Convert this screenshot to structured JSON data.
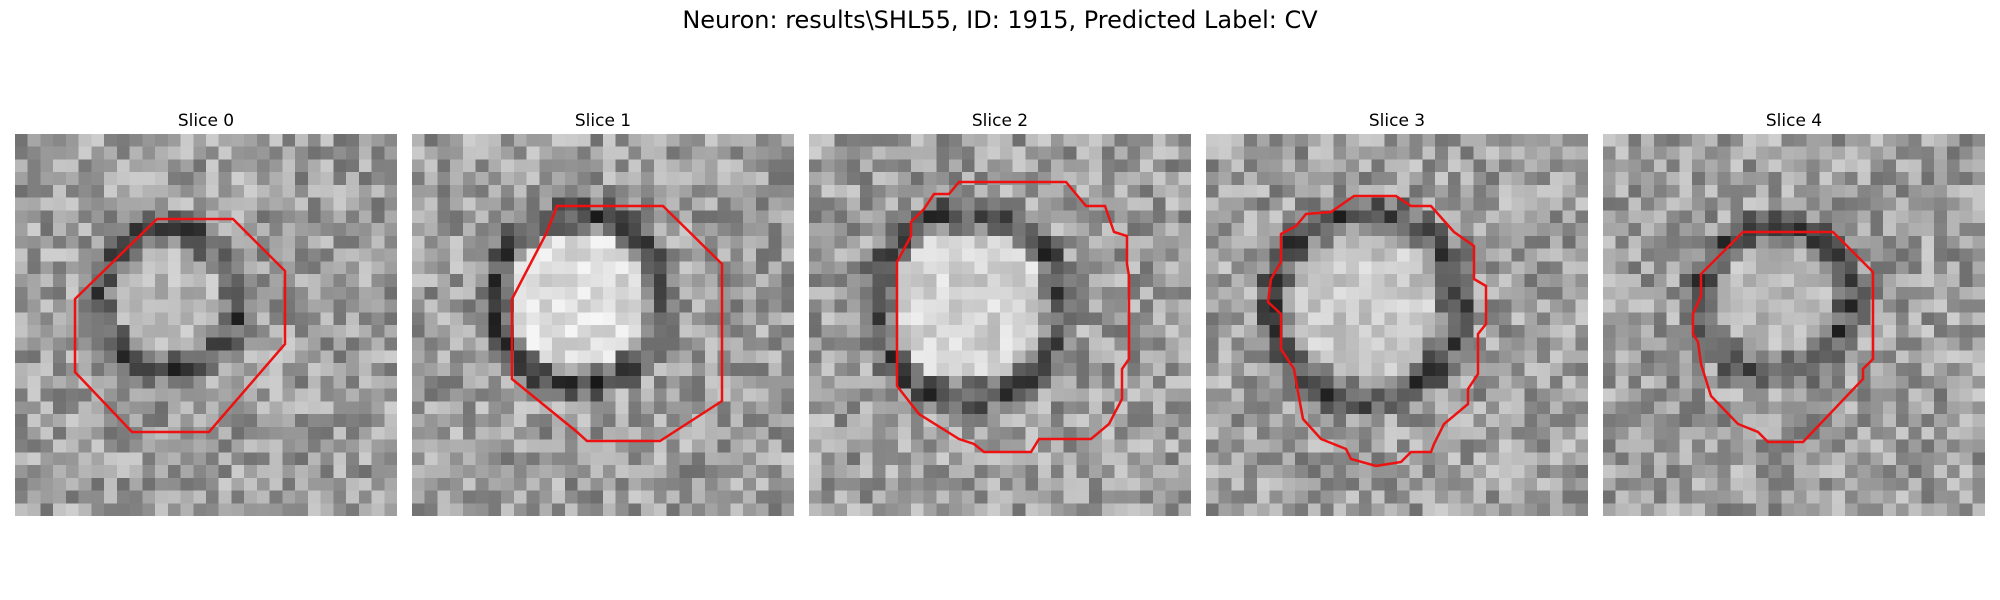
{
  "figure": {
    "suptitle": "Neuron: results\\SHL55, ID: 1915, Predicted Label: CV"
  },
  "panels": [
    {
      "title": "Slice 0"
    },
    {
      "title": "Slice 1"
    },
    {
      "title": "Slice 2"
    },
    {
      "title": "Slice 3"
    },
    {
      "title": "Slice 4"
    }
  ],
  "colors": {
    "contour": "#ee1111"
  }
}
